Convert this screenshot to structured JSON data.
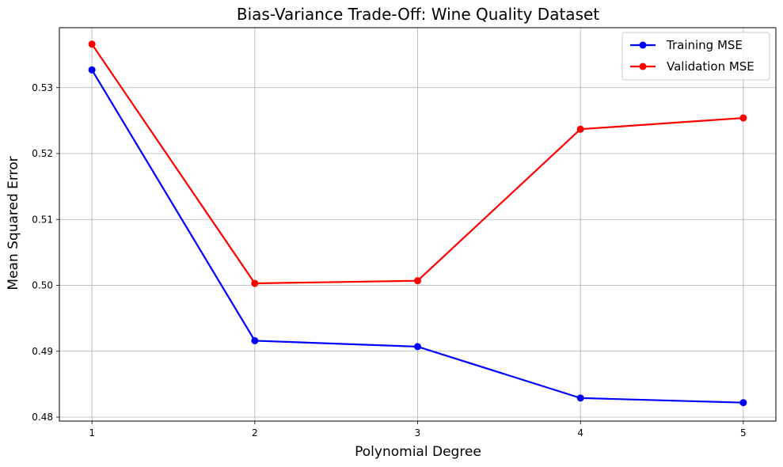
{
  "chart_data": {
    "type": "line",
    "title": "Bias-Variance Trade-Off: Wine Quality Dataset",
    "xlabel": "Polynomial Degree",
    "ylabel": "Mean Squared Error",
    "x": [
      1,
      2,
      3,
      4,
      5
    ],
    "xticks": [
      "1",
      "2",
      "3",
      "4",
      "5"
    ],
    "yticks": [
      "0.48",
      "0.49",
      "0.50",
      "0.51",
      "0.52",
      "0.53"
    ],
    "xlim": [
      0.8,
      5.2
    ],
    "ylim": [
      0.4794,
      0.5391
    ],
    "grid": true,
    "legend_position": "top-right",
    "series": [
      {
        "name": "Training MSE",
        "color": "#0000ff",
        "values": [
          0.5327,
          0.4916,
          0.4907,
          0.4829,
          0.4822
        ]
      },
      {
        "name": "Validation MSE",
        "color": "#ff0000",
        "values": [
          0.5366,
          0.5003,
          0.5007,
          0.5237,
          0.5254
        ]
      }
    ]
  }
}
